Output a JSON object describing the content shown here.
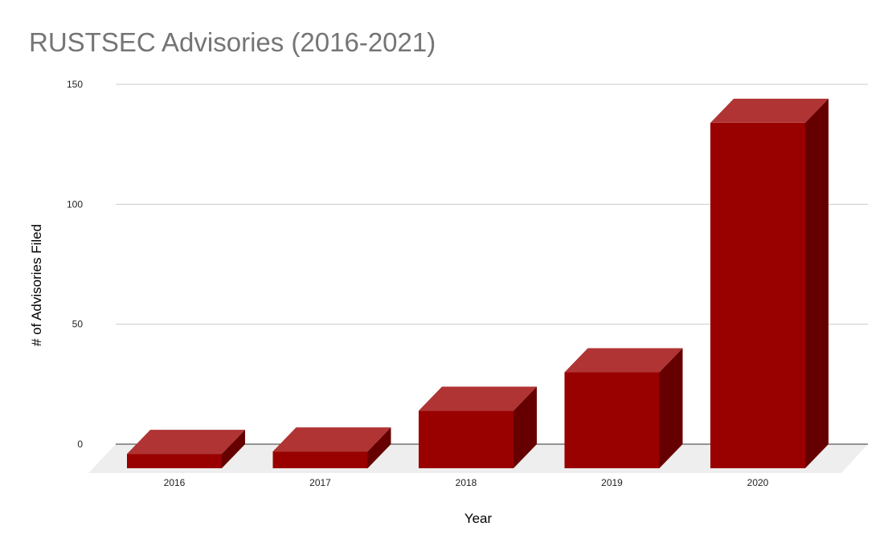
{
  "chart_data": {
    "type": "bar",
    "title": "RUSTSEC Advisories (2016-2021)",
    "xlabel": "Year",
    "ylabel": "# of Advisories Filed",
    "categories": [
      "2016",
      "2017",
      "2018",
      "2019",
      "2020"
    ],
    "values": [
      6,
      7,
      24,
      40,
      144
    ],
    "yticks": [
      0,
      50,
      100,
      150
    ],
    "ylim": [
      0,
      150
    ],
    "grid": true,
    "legend": "none",
    "style": "3d",
    "colors": {
      "bar_front": "#990000",
      "bar_top": "#b03434",
      "bar_side": "#660000",
      "floor": "#eeeeee",
      "grid": "#cccccc",
      "baseline": "#333333"
    }
  }
}
